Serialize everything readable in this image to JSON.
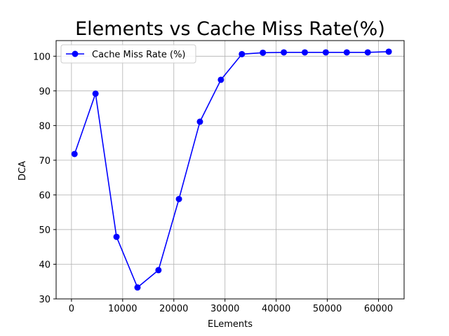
{
  "chart_data": {
    "type": "line",
    "title": "Elements vs Cache Miss Rate(%)",
    "xlabel": "ELements",
    "ylabel": "DCA",
    "xlim": [
      -3000,
      65000
    ],
    "ylim": [
      30,
      104.5
    ],
    "xticks": [
      0,
      10000,
      20000,
      30000,
      40000,
      50000,
      60000
    ],
    "yticks": [
      30,
      40,
      50,
      60,
      70,
      80,
      90,
      100
    ],
    "grid": true,
    "legend_position": "upper-left",
    "series": [
      {
        "name": "Cache Miss Rate (%)",
        "color": "#0000ff",
        "marker": "circle",
        "x": [
          600,
          4700,
          8800,
          12900,
          17000,
          21000,
          25100,
          29200,
          33300,
          37400,
          41500,
          45600,
          49700,
          53800,
          57900,
          62000
        ],
        "y": [
          71.8,
          89.2,
          47.9,
          33.3,
          38.3,
          58.8,
          81.1,
          93.2,
          100.6,
          101.0,
          101.1,
          101.1,
          101.1,
          101.1,
          101.1,
          101.3
        ]
      }
    ]
  }
}
